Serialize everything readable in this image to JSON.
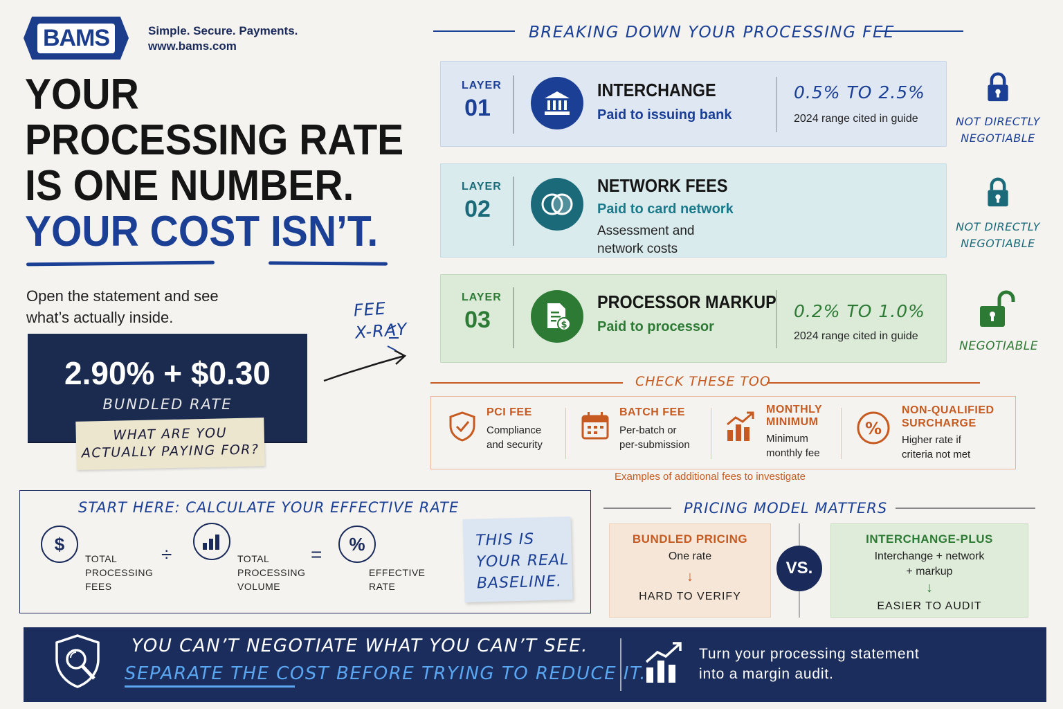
{
  "brand": {
    "logo_text": "BAMS",
    "tagline": "Simple. Secure. Payments.",
    "website": "www.bams.com"
  },
  "headline": {
    "line1": "YOUR",
    "line2": "PROCESSING RATE",
    "line3": "IS ONE NUMBER.",
    "line4a": "YOUR COST",
    "line4b": "ISN’T."
  },
  "intro": {
    "line1": "Open the statement and see",
    "line2": "what’s actually inside."
  },
  "bundled_card": {
    "rate": "2.90% + $0.30",
    "label": "BUNDLED RATE",
    "note_line1": "WHAT ARE YOU",
    "note_line2": "ACTUALLY PAYING FOR?"
  },
  "xray": {
    "line1": "FEE",
    "line2": "X-RAY"
  },
  "breakdown": {
    "title": "BREAKING DOWN YOUR PROCESSING FEE",
    "layers": [
      {
        "layer_label": "LAYER",
        "num": "01",
        "name": "INTERCHANGE",
        "paid_to": "Paid to issuing bank",
        "range": "0.5% TO 2.5%",
        "range_note": "2024 range cited in guide",
        "status": [
          "NOT DIRECTLY",
          "NEGOTIABLE"
        ],
        "icon": "bank-icon",
        "color": "#1a3f95"
      },
      {
        "layer_label": "LAYER",
        "num": "02",
        "name": "NETWORK FEES",
        "paid_to": "Paid to card network",
        "extra": [
          "Assessment and",
          "network costs"
        ],
        "status": [
          "NOT DIRECTLY",
          "NEGOTIABLE"
        ],
        "icon": "network-icon",
        "color": "#1a6a7a"
      },
      {
        "layer_label": "LAYER",
        "num": "03",
        "name": "PROCESSOR MARKUP",
        "paid_to": "Paid to processor",
        "range": "0.2% TO 1.0%",
        "range_note": "2024 range cited in guide",
        "status": [
          "NEGOTIABLE"
        ],
        "icon": "invoice-dollar-icon",
        "color": "#2d7a35"
      }
    ]
  },
  "check_these": {
    "title": "CHECK THESE TOO",
    "items": [
      {
        "title": "PCI FEE",
        "desc": [
          "Compliance",
          "and security"
        ],
        "icon": "shield-check-icon"
      },
      {
        "title": "BATCH FEE",
        "desc": [
          "Per-batch or",
          "per-submission"
        ],
        "icon": "calendar-icon"
      },
      {
        "title": "MONTHLY",
        "title2": "MINIMUM",
        "desc": [
          "Minimum",
          "monthly fee"
        ],
        "icon": "chart-up-icon"
      },
      {
        "title": "NON-QUALIFIED",
        "title2": "SURCHARGE",
        "desc": [
          "Higher rate if",
          "criteria not met"
        ],
        "icon": "percent-icon"
      }
    ],
    "footnote": "Examples of additional fees to investigate"
  },
  "effective_rate": {
    "title": "START HERE: CALCULATE YOUR EFFECTIVE RATE",
    "fees": [
      "TOTAL",
      "PROCESSING",
      "FEES"
    ],
    "volume": [
      "TOTAL",
      "PROCESSING",
      "VOLUME"
    ],
    "result": [
      "EFFECTIVE",
      "RATE"
    ],
    "divide": "÷",
    "equals": "=",
    "sticky": [
      "THIS IS",
      "YOUR REAL",
      "BASELINE."
    ]
  },
  "pricing_model": {
    "title": "PRICING MODEL MATTERS",
    "bundled": {
      "title": "BUNDLED PRICING",
      "desc": "One rate",
      "arrow": "↓",
      "foot": "HARD TO VERIFY"
    },
    "vs": "VS.",
    "ic_plus": {
      "title": "INTERCHANGE-PLUS",
      "desc1": "Interchange + network",
      "desc2": "+ markup",
      "arrow": "↓",
      "foot": "EASIER TO AUDIT"
    }
  },
  "banner": {
    "line1": "YOU CAN’T NEGOTIATE WHAT YOU CAN’T SEE.",
    "line2a": "SEPARATE THE COST",
    "line2b": " BEFORE TRYING TO REDUCE IT.",
    "right1": "Turn your processing statement",
    "right2": "into a margin audit."
  },
  "colors": {
    "navy": "#1b2d5d",
    "blue": "#1a3f95",
    "teal": "#1a6a7a",
    "green": "#2d7a35",
    "orange": "#c65a20"
  }
}
